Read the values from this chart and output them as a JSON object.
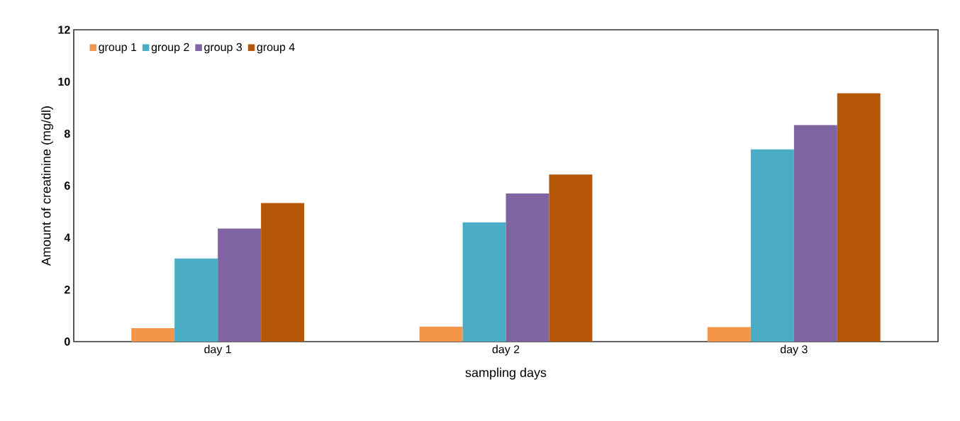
{
  "chart_data": {
    "type": "bar",
    "xlabel": "sampling days",
    "ylabel": "Amount of creatinine (mg/dl)",
    "categories": [
      "day 1",
      "day 2",
      "day 3"
    ],
    "series": [
      {
        "name": "group 1",
        "color": "#f4964a",
        "values": [
          0.52,
          0.58,
          0.56
        ]
      },
      {
        "name": "group 2",
        "color": "#4aacc5",
        "values": [
          3.2,
          4.59,
          7.4
        ]
      },
      {
        "name": "group 3",
        "color": "#8064a2",
        "values": [
          4.35,
          5.7,
          8.33
        ]
      },
      {
        "name": "group 4",
        "color": "#b65708",
        "values": [
          5.33,
          6.43,
          9.56
        ]
      }
    ],
    "ylim": [
      0,
      12
    ],
    "yticks": [
      0,
      2,
      4,
      6,
      8,
      10,
      12
    ],
    "legend": "top left",
    "grid": false
  }
}
